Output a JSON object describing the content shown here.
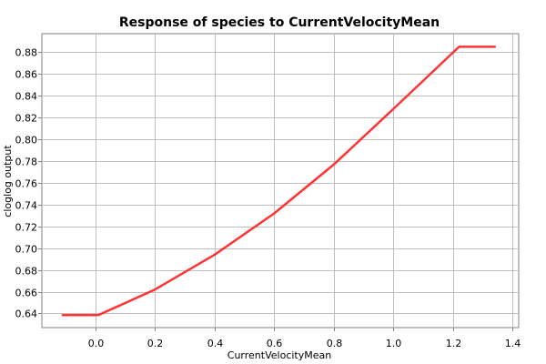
{
  "chart_data": {
    "type": "line",
    "title": "Response of species to CurrentVelocityMean",
    "xlabel": "CurrentVelocityMean",
    "ylabel": "cloglog output",
    "xlim": [
      -0.18,
      1.42
    ],
    "ylim": [
      0.627,
      0.897
    ],
    "grid": true,
    "x_ticks": [
      0.0,
      0.2,
      0.4,
      0.6,
      0.8,
      1.0,
      1.2,
      1.4
    ],
    "x_tick_labels": [
      "0.0",
      "0.2",
      "0.4",
      "0.6",
      "0.8",
      "1.0",
      "1.2",
      "1.4"
    ],
    "y_ticks": [
      0.64,
      0.66,
      0.68,
      0.7,
      0.72,
      0.74,
      0.76,
      0.78,
      0.8,
      0.82,
      0.84,
      0.86,
      0.88
    ],
    "y_tick_labels": [
      "0.64",
      "0.66",
      "0.68",
      "0.70",
      "0.72",
      "0.74",
      "0.76",
      "0.78",
      "0.80",
      "0.82",
      "0.84",
      "0.86",
      "0.88"
    ],
    "series": [
      {
        "color": "#ff3333",
        "x": [
          -0.11,
          0.01,
          0.2,
          0.4,
          0.6,
          0.8,
          1.0,
          1.22,
          1.34
        ],
        "y": [
          0.6385,
          0.6385,
          0.662,
          0.694,
          0.732,
          0.777,
          0.828,
          0.885,
          0.885
        ]
      }
    ]
  }
}
